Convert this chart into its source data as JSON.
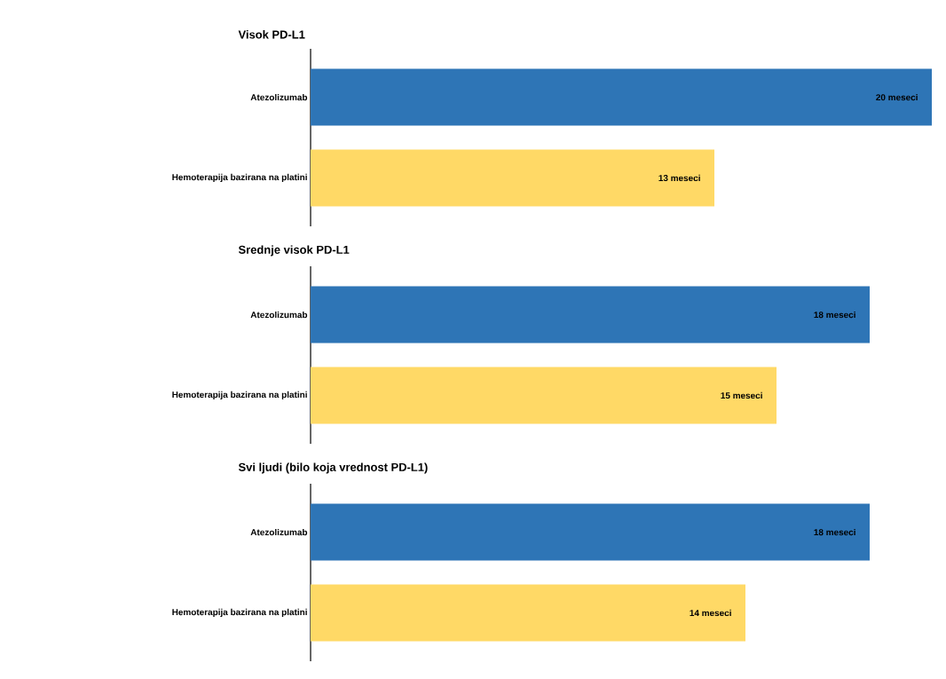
{
  "chart_data": [
    {
      "type": "bar",
      "orientation": "horizontal",
      "title": "Visok PD-L1",
      "categories": [
        "Atezolizumab",
        "Hemoterapija bazirana na platini"
      ],
      "values": [
        20,
        13
      ],
      "colors": [
        "#2e75b6",
        "#ffd966"
      ],
      "value_labels": [
        "20 meseci",
        "13 meseci"
      ],
      "tick_labels": "y"
    },
    {
      "type": "bar",
      "orientation": "horizontal",
      "title": "Srednje visok PD-L1",
      "categories": [
        "Atezolizumab",
        "Hemoterapija bazirana na platini"
      ],
      "values": [
        18,
        15
      ],
      "colors": [
        "#2e75b6",
        "#ffd966"
      ],
      "value_labels": [
        "18 meseci",
        "15 meseci"
      ],
      "tick_labels": "y"
    },
    {
      "type": "bar",
      "orientation": "horizontal",
      "title": "Svi ljudi (bilo koja vrednost PD-L1)",
      "categories": [
        "Atezolizumab",
        "Hemoterapija bazirana na platini"
      ],
      "values": [
        18,
        14
      ],
      "colors": [
        "#2e75b6",
        "#ffd966"
      ],
      "value_labels": [
        "18 meseci",
        "14 meseci"
      ],
      "tick_labels": "y"
    }
  ]
}
